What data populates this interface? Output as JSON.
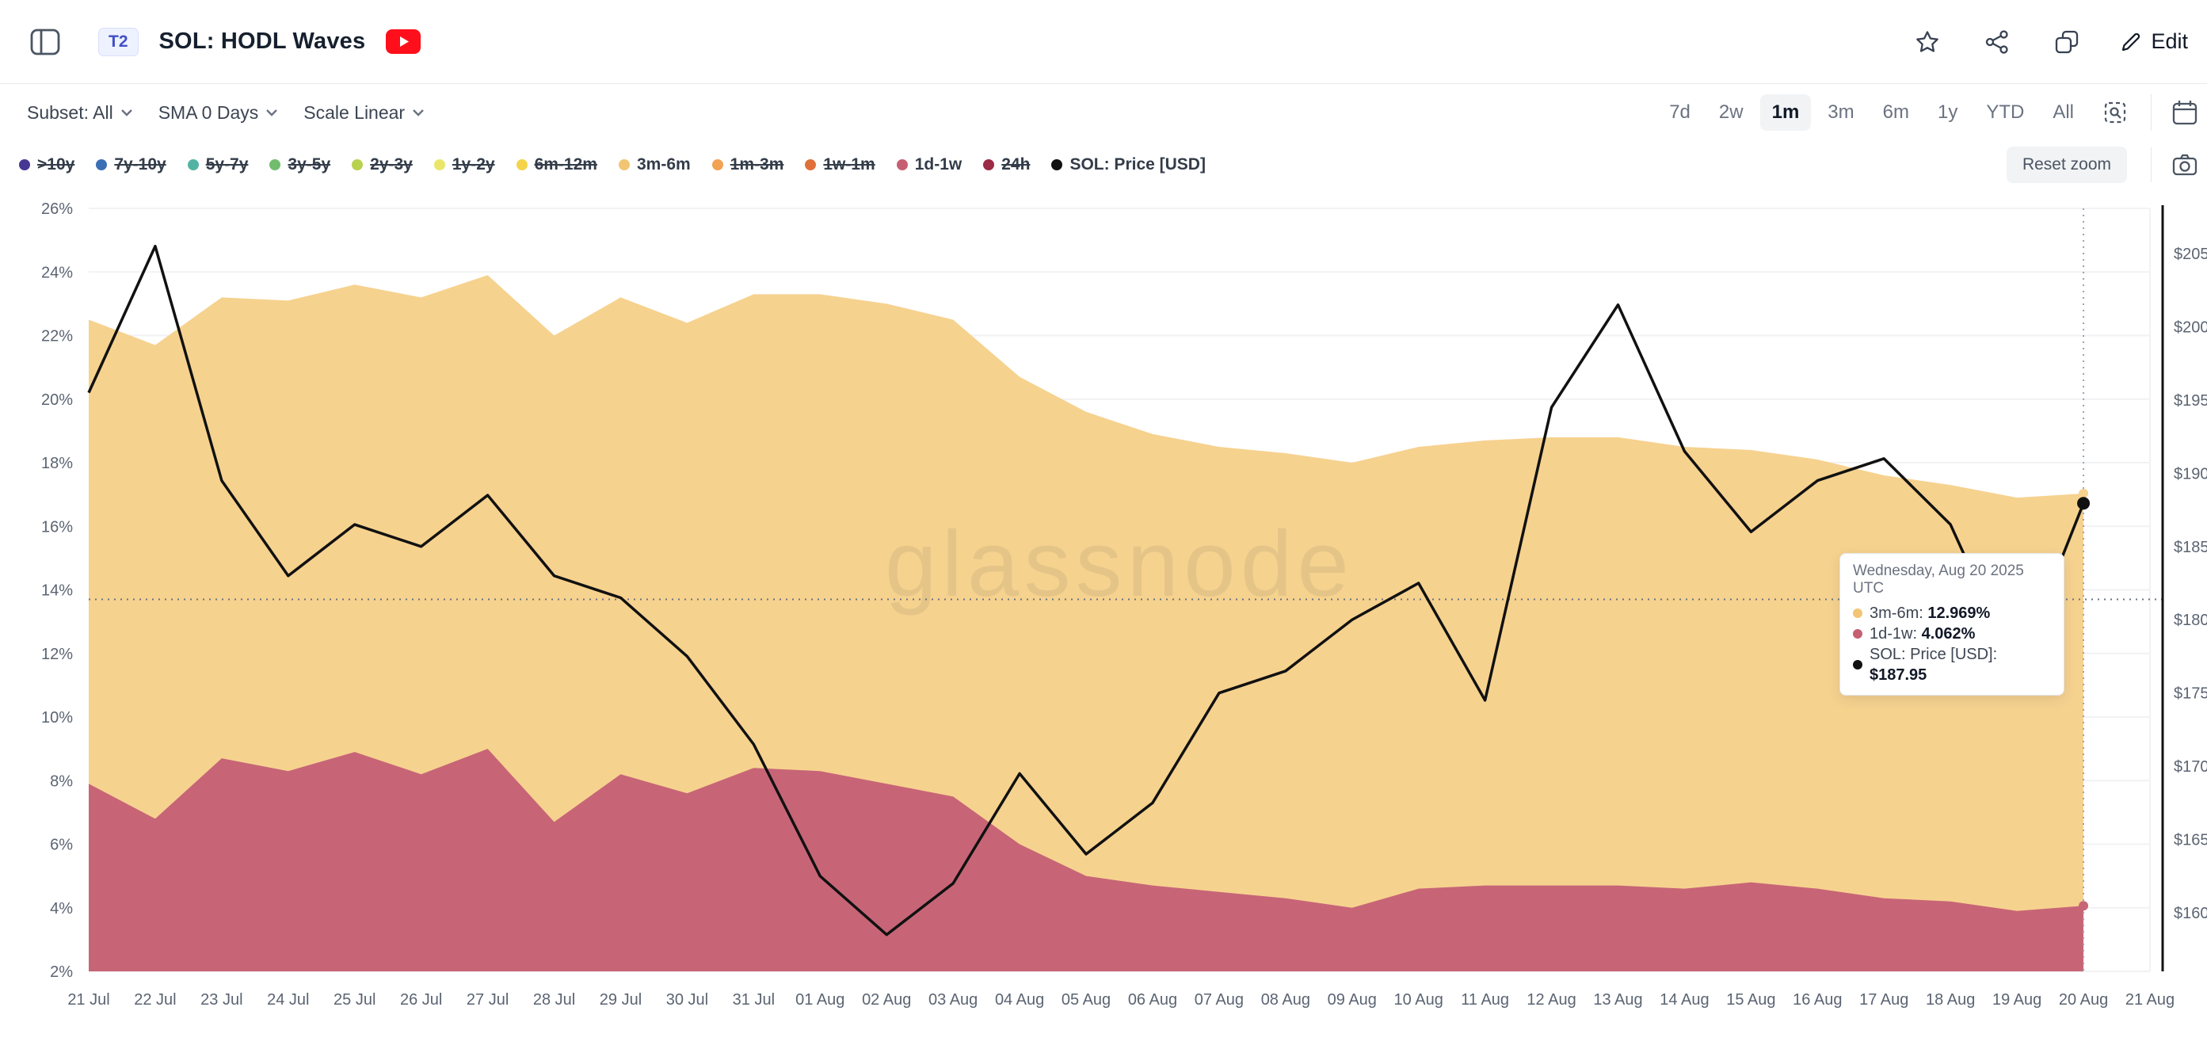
{
  "header": {
    "badge": "T2",
    "title": "SOL: HODL Waves",
    "edit_label": "Edit"
  },
  "controls": {
    "subset": "Subset: All",
    "sma": "SMA 0 Days",
    "scale": "Scale Linear",
    "ranges": [
      "7d",
      "2w",
      "1m",
      "3m",
      "6m",
      "1y",
      "YTD",
      "All"
    ],
    "selected_range": "1m",
    "reset_zoom_label": "Reset zoom"
  },
  "legend": {
    "items": [
      {
        "label": ">10y",
        "color": "#453793",
        "active": false
      },
      {
        "label": "7y-10y",
        "color": "#3b6fb5",
        "active": false
      },
      {
        "label": "5y-7y",
        "color": "#52b3a4",
        "active": false
      },
      {
        "label": "3y-5y",
        "color": "#72bd6d",
        "active": false
      },
      {
        "label": "2y-3y",
        "color": "#b8d14f",
        "active": false
      },
      {
        "label": "1y-2y",
        "color": "#e9e66b",
        "active": false
      },
      {
        "label": "6m-12m",
        "color": "#f4d44a",
        "active": false
      },
      {
        "label": "3m-6m",
        "color": "#f2c573",
        "active": true
      },
      {
        "label": "1m-3m",
        "color": "#f2a254",
        "active": false
      },
      {
        "label": "1w-1m",
        "color": "#e0703a",
        "active": false
      },
      {
        "label": "1d-1w",
        "color": "#c65f72",
        "active": true
      },
      {
        "label": "24h",
        "color": "#9c2b45",
        "active": false
      },
      {
        "label": "SOL: Price [USD]",
        "color": "#111111",
        "active": true
      }
    ]
  },
  "watermark": "glassnode",
  "chart_data": {
    "type": "area",
    "stacked": true,
    "title": "SOL: HODL Waves",
    "x": [
      "21 Jul",
      "22 Jul",
      "23 Jul",
      "24 Jul",
      "25 Jul",
      "26 Jul",
      "27 Jul",
      "28 Jul",
      "29 Jul",
      "30 Jul",
      "31 Jul",
      "01 Aug",
      "02 Aug",
      "03 Aug",
      "04 Aug",
      "05 Aug",
      "06 Aug",
      "07 Aug",
      "08 Aug",
      "09 Aug",
      "10 Aug",
      "11 Aug",
      "12 Aug",
      "13 Aug",
      "14 Aug",
      "15 Aug",
      "16 Aug",
      "17 Aug",
      "18 Aug",
      "19 Aug",
      "20 Aug"
    ],
    "x_axis_ticks": [
      "21 Jul",
      "22 Jul",
      "23 Jul",
      "24 Jul",
      "25 Jul",
      "26 Jul",
      "27 Jul",
      "28 Jul",
      "29 Jul",
      "30 Jul",
      "31 Jul",
      "01 Aug",
      "02 Aug",
      "03 Aug",
      "04 Aug",
      "05 Aug",
      "06 Aug",
      "07 Aug",
      "08 Aug",
      "09 Aug",
      "10 Aug",
      "11 Aug",
      "12 Aug",
      "13 Aug",
      "14 Aug",
      "15 Aug",
      "16 Aug",
      "17 Aug",
      "18 Aug",
      "19 Aug",
      "20 Aug",
      "21 Aug"
    ],
    "left_axis": {
      "unit": "%",
      "min": 2,
      "max": 26,
      "step": 2,
      "ticks": [
        "26%",
        "24%",
        "22%",
        "20%",
        "18%",
        "16%",
        "14%",
        "12%",
        "10%",
        "8%",
        "6%",
        "4%",
        "2%"
      ]
    },
    "right_axis": {
      "unit": "USD",
      "min": 160,
      "max": 205,
      "step": 5,
      "ticks": [
        "$205",
        "$200",
        "$195",
        "$190",
        "$185",
        "$180",
        "$175",
        "$170",
        "$165",
        "$160"
      ]
    },
    "series": [
      {
        "name": "3m-6m",
        "type": "area",
        "color": "#f6d28f",
        "values": [
          14.6,
          14.9,
          14.5,
          14.8,
          14.7,
          15.0,
          14.9,
          15.3,
          15.0,
          14.8,
          14.9,
          15.0,
          15.1,
          15.0,
          14.7,
          14.6,
          14.2,
          14.0,
          14.0,
          14.0,
          13.9,
          14.0,
          14.1,
          14.1,
          13.9,
          13.6,
          13.5,
          13.3,
          13.1,
          13.0,
          12.969
        ]
      },
      {
        "name": "1d-1w",
        "type": "area",
        "color": "#c76577",
        "values": [
          7.9,
          6.8,
          8.7,
          8.3,
          8.9,
          8.2,
          9.0,
          6.7,
          8.2,
          7.6,
          8.4,
          8.3,
          7.9,
          7.5,
          6.0,
          5.0,
          4.7,
          4.5,
          4.3,
          4.0,
          4.6,
          4.7,
          4.7,
          4.7,
          4.6,
          4.8,
          4.6,
          4.3,
          4.2,
          3.9,
          4.062
        ]
      },
      {
        "name": "SOL: Price [USD]",
        "type": "line",
        "color": "#111111",
        "values": [
          195.5,
          205.5,
          189.5,
          183.0,
          186.5,
          185.0,
          188.5,
          183.0,
          181.5,
          177.5,
          171.5,
          162.5,
          158.5,
          162.0,
          169.5,
          164.0,
          167.5,
          175.0,
          176.5,
          180.0,
          182.5,
          174.5,
          194.5,
          201.5,
          191.5,
          186.0,
          189.5,
          191.0,
          186.5,
          176.5,
          187.95
        ]
      }
    ],
    "crosshair": {
      "x_label": "20 Aug",
      "x_index": 30,
      "h_line_pct": 13.7
    },
    "legend_position": "top",
    "grid": true
  },
  "tooltip": {
    "title": "Wednesday, Aug 20 2025 UTC",
    "rows": [
      {
        "label": "3m-6m:",
        "value": "12.969%",
        "color": "#f2c573"
      },
      {
        "label": "1d-1w:",
        "value": "4.062%",
        "color": "#c65f72"
      },
      {
        "label": "SOL: Price [USD]:",
        "value": "$187.95",
        "color": "#111111"
      }
    ]
  }
}
